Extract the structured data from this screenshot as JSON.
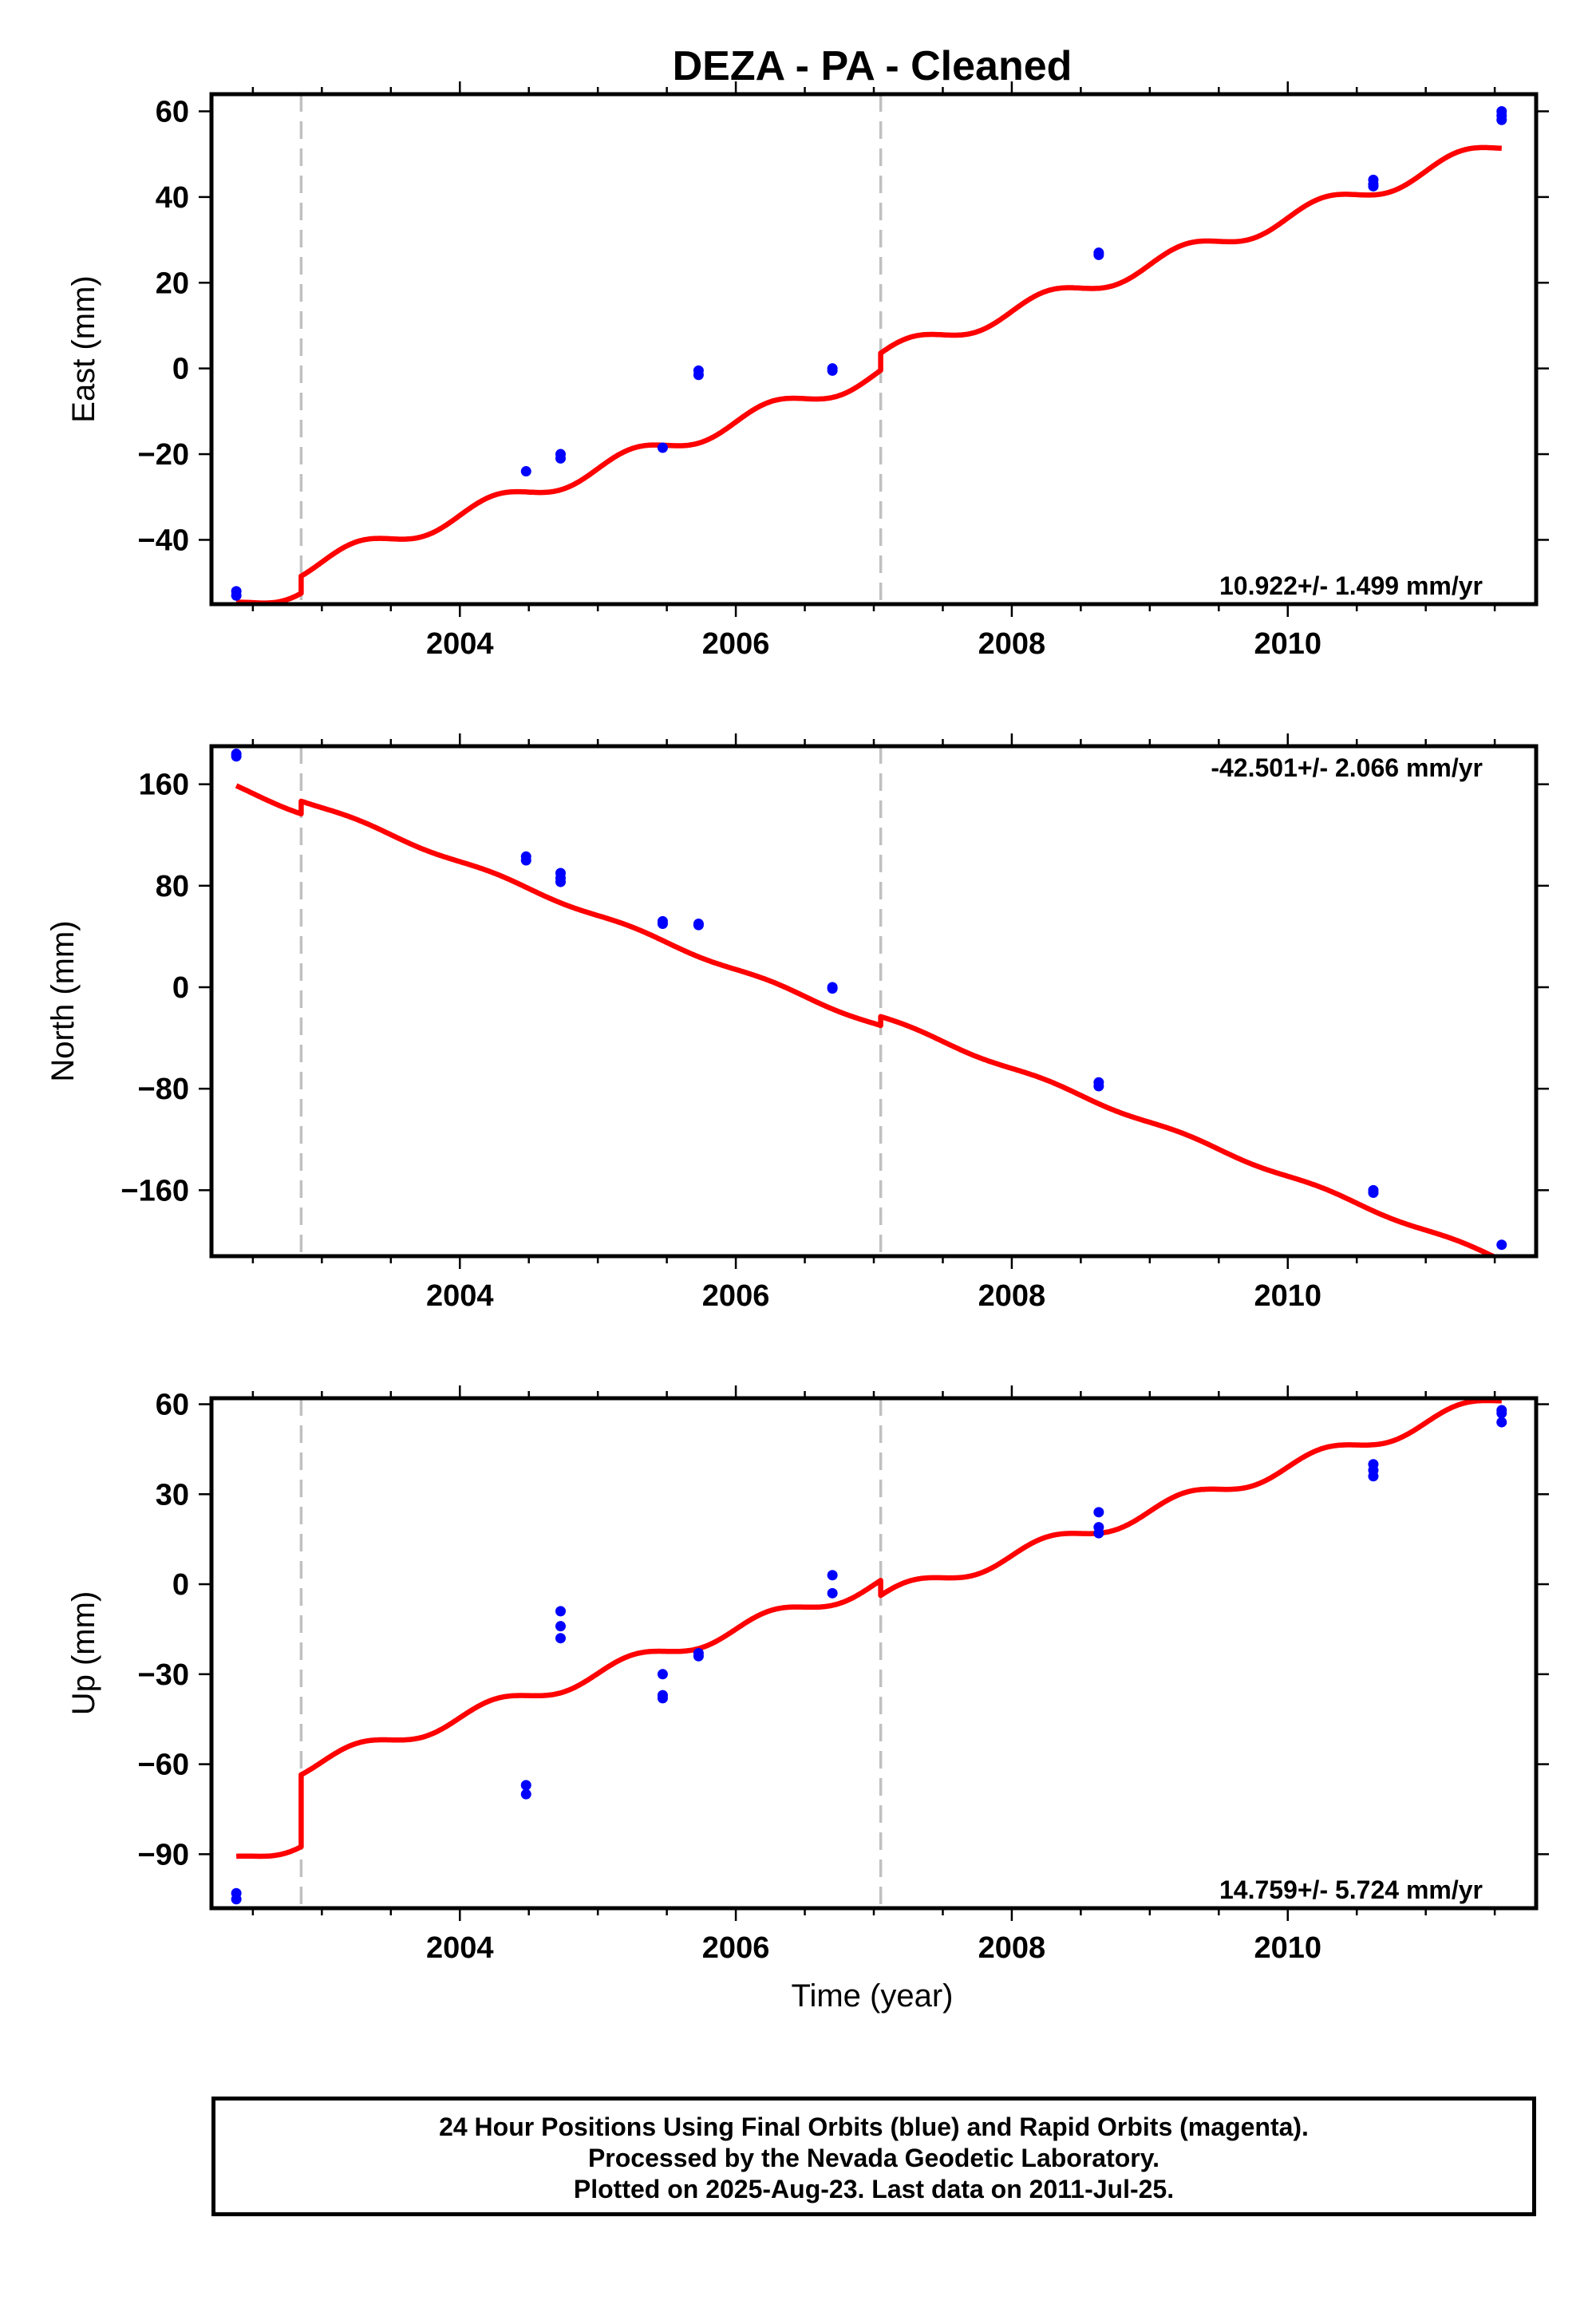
{
  "title": "DEZA  - PA - Cleaned",
  "xlabel": "Time (year)",
  "x_ticks": [
    "2004",
    "2006",
    "2008",
    "2010"
  ],
  "footer": {
    "line1": "24 Hour Positions Using Final Orbits (blue) and Rapid Orbits (magenta).",
    "line2": "Processed by the Nevada Geodetic Laboratory.",
    "line3": "Plotted on 2025-Aug-23. Last data on 2011-Jul-25."
  },
  "colors": {
    "data_points": "#0000ff",
    "model_fit": "#ff0000",
    "step_lines": "#c0c0c0"
  },
  "chart_data": [
    {
      "type": "scatter",
      "name": "east",
      "ylabel": "East (mm)",
      "rate_text": "10.922+/- 1.499 mm/yr",
      "xlim": [
        2002.2,
        2011.8
      ],
      "ylim": [
        -55,
        64
      ],
      "y_ticks": [
        60,
        40,
        20,
        0,
        -20,
        -40
      ],
      "y_tick_labels": [
        "60",
        "40",
        "20",
        "0",
        "−20",
        "−40"
      ],
      "x_ticks": [
        2004,
        2006,
        2008,
        2010
      ],
      "step_epochs": [
        2002.85,
        2007.05
      ],
      "model": {
        "start": 2002.38,
        "end": 2011.55,
        "ref_year": 2006.0,
        "intercept": -8.5,
        "slope": 10.9,
        "amplitude": 2.0,
        "steps": [
          [
            2002.85,
            4.0
          ],
          [
            2007.05,
            4.0
          ]
        ]
      },
      "points": [
        [
          2002.38,
          -52
        ],
        [
          2002.38,
          -53
        ],
        [
          2004.48,
          -24
        ],
        [
          2004.73,
          -20
        ],
        [
          2004.73,
          -21
        ],
        [
          2005.47,
          -18.5
        ],
        [
          2005.73,
          -0.5
        ],
        [
          2005.73,
          -1.5
        ],
        [
          2006.7,
          0
        ],
        [
          2006.7,
          -0.5
        ],
        [
          2008.63,
          27
        ],
        [
          2008.63,
          26.5
        ],
        [
          2010.62,
          44
        ],
        [
          2010.62,
          43
        ],
        [
          2010.62,
          42.5
        ],
        [
          2011.55,
          60
        ],
        [
          2011.55,
          59
        ],
        [
          2011.55,
          58
        ]
      ]
    },
    {
      "type": "scatter",
      "name": "north",
      "ylabel": "North (mm)",
      "rate_text": "-42.501+/- 2.066 mm/yr",
      "xlim": [
        2002.2,
        2011.8
      ],
      "ylim": [
        -212,
        190
      ],
      "y_ticks": [
        160,
        80,
        0,
        -80,
        -160
      ],
      "y_tick_labels": [
        "160",
        "80",
        "0",
        "−80",
        "−160"
      ],
      "x_ticks": [
        2004,
        2006,
        2008,
        2010
      ],
      "step_epochs": [
        2002.85,
        2007.05
      ],
      "model": {
        "start": 2002.38,
        "end": 2011.55,
        "ref_year": 2006.0,
        "intercept": 21.0,
        "slope": -42.5,
        "amplitude": 1.5,
        "steps": [
          [
            2002.85,
            10.0
          ],
          [
            2007.05,
            7.0
          ]
        ]
      },
      "points": [
        [
          2002.38,
          184
        ],
        [
          2002.38,
          182
        ],
        [
          2004.48,
          103
        ],
        [
          2004.48,
          100
        ],
        [
          2004.73,
          90
        ],
        [
          2004.73,
          86
        ],
        [
          2004.73,
          83
        ],
        [
          2005.47,
          52
        ],
        [
          2005.47,
          50
        ],
        [
          2005.73,
          50
        ],
        [
          2005.73,
          49
        ],
        [
          2006.7,
          0
        ],
        [
          2006.7,
          -1
        ],
        [
          2008.63,
          -75
        ],
        [
          2008.63,
          -78
        ],
        [
          2010.62,
          -160
        ],
        [
          2010.62,
          -162
        ],
        [
          2011.55,
          -203
        ]
      ]
    },
    {
      "type": "scatter",
      "name": "up",
      "ylabel": "Up (mm)",
      "rate_text": "14.759+/- 5.724 mm/yr",
      "xlim": [
        2002.2,
        2011.8
      ],
      "ylim": [
        -108,
        62
      ],
      "y_ticks": [
        60,
        30,
        0,
        -30,
        -60,
        -90
      ],
      "y_tick_labels": [
        "60",
        "30",
        "0",
        "−30",
        "−60",
        "−90"
      ],
      "x_ticks": [
        2004,
        2006,
        2008,
        2010
      ],
      "step_epochs": [
        2002.85,
        2007.05
      ],
      "model": {
        "start": 2002.38,
        "end": 2011.55,
        "ref_year": 2006.0,
        "intercept": -20.0,
        "slope": 14.76,
        "amplitude": 2.5,
        "steps": [
          [
            2002.85,
            24.0
          ],
          [
            2007.05,
            -5.0
          ]
        ]
      },
      "points": [
        [
          2002.38,
          -103
        ],
        [
          2002.38,
          -105
        ],
        [
          2004.48,
          -67
        ],
        [
          2004.48,
          -70
        ],
        [
          2004.73,
          -9
        ],
        [
          2004.73,
          -14
        ],
        [
          2004.73,
          -18
        ],
        [
          2005.47,
          -30
        ],
        [
          2005.47,
          -37
        ],
        [
          2005.47,
          -38
        ],
        [
          2005.73,
          -23
        ],
        [
          2005.73,
          -24
        ],
        [
          2006.7,
          3
        ],
        [
          2006.7,
          -3
        ],
        [
          2008.63,
          24
        ],
        [
          2008.63,
          19
        ],
        [
          2008.63,
          17
        ],
        [
          2010.62,
          40
        ],
        [
          2010.62,
          38
        ],
        [
          2010.62,
          36
        ],
        [
          2011.55,
          58
        ],
        [
          2011.55,
          57
        ],
        [
          2011.55,
          54
        ]
      ]
    }
  ]
}
